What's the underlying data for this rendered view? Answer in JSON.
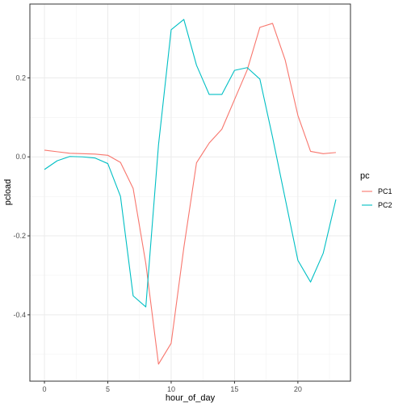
{
  "chart_data": {
    "type": "line",
    "xlabel": "hour_of_day",
    "ylabel": "pcload",
    "xlim": [
      -1.15,
      24.15
    ],
    "ylim": [
      -0.568,
      0.387
    ],
    "x_ticks": [
      0,
      5,
      10,
      15,
      20
    ],
    "x_tick_labels": [
      "0",
      "5",
      "10",
      "15",
      "20"
    ],
    "y_ticks": [
      -0.4,
      -0.2,
      0.0,
      0.2
    ],
    "y_tick_labels": [
      "-0.4",
      "-0.2",
      "0.0",
      "0.2"
    ],
    "grid": true,
    "legend": {
      "title": "pc",
      "position": "right"
    },
    "x": [
      0,
      1,
      2,
      3,
      4,
      5,
      6,
      7,
      8,
      9,
      10,
      11,
      12,
      13,
      14,
      15,
      16,
      17,
      18,
      19,
      20,
      21,
      22,
      23
    ],
    "series": [
      {
        "name": "PC1",
        "color": "#F8766D",
        "values": [
          0.017,
          0.013,
          0.009,
          0.008,
          0.007,
          0.004,
          -0.014,
          -0.08,
          -0.27,
          -0.525,
          -0.472,
          -0.23,
          -0.015,
          0.035,
          0.07,
          0.145,
          0.22,
          0.328,
          0.338,
          0.245,
          0.105,
          0.014,
          0.008,
          0.011
        ]
      },
      {
        "name": "PC2",
        "color": "#00BFC4",
        "values": [
          -0.032,
          -0.01,
          0.001,
          0.0,
          -0.003,
          -0.017,
          -0.1,
          -0.352,
          -0.38,
          0.03,
          0.322,
          0.348,
          0.232,
          0.158,
          0.158,
          0.219,
          0.226,
          0.197,
          0.05,
          -0.106,
          -0.262,
          -0.317,
          -0.244,
          -0.108
        ]
      }
    ]
  }
}
